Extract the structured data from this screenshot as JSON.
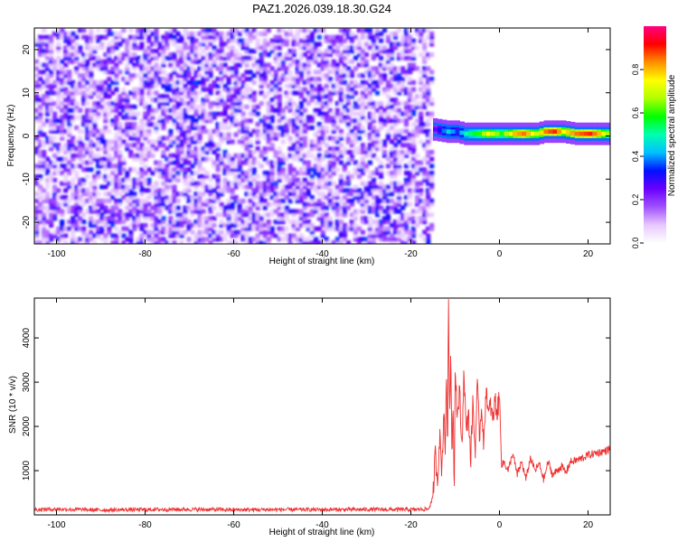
{
  "figure_title": "PAZ1.2026.039.18.30.G24",
  "chart_data": [
    {
      "type": "heatmap",
      "title": "PAZ1.2026.039.18.30.G24",
      "xlabel": "Height of straight line (km)",
      "ylabel": "Frequency (Hz)",
      "xlim": [
        -105,
        25
      ],
      "ylim": [
        -25,
        25
      ],
      "xticks": [
        -100,
        -80,
        -60,
        -40,
        -20,
        0,
        20
      ],
      "yticks": [
        -20,
        -10,
        0,
        10,
        20
      ],
      "colorbar": {
        "label": "Normalized spectral amplitude",
        "range": [
          0,
          1
        ],
        "ticks": [
          0.0,
          0.2,
          0.4,
          0.6,
          0.8
        ],
        "colormap": [
          "#ffffff",
          "#e8c8ff",
          "#a050ff",
          "#6a00ff",
          "#0010ff",
          "#00c0ff",
          "#00ffb0",
          "#00ff00",
          "#b0ff00",
          "#ffff00",
          "#ff9000",
          "#ff0000",
          "#ff0080"
        ]
      },
      "description_regions": {
        "noise_region_x": [
          -105,
          -15
        ],
        "noise_amplitude_range": [
          0.0,
          0.3
        ],
        "signal_start_x": -15,
        "signal_center_frequency_hz": 0.5,
        "signal_peak_amplitude": 0.9
      },
      "signal_trace": {
        "x": [
          -15,
          -12,
          -10,
          -8,
          -5,
          -3,
          0,
          3,
          5,
          8,
          10,
          12,
          14,
          17,
          20,
          22,
          25
        ],
        "freq": [
          1.5,
          1.0,
          1.0,
          0.5,
          0.5,
          0.5,
          0.5,
          0.5,
          0.5,
          0.5,
          1.0,
          1.0,
          1.0,
          0.5,
          0.5,
          0.5,
          0.5
        ],
        "amp": [
          0.25,
          0.45,
          0.35,
          0.5,
          0.6,
          0.75,
          0.6,
          0.8,
          0.85,
          0.7,
          0.85,
          0.9,
          0.75,
          0.85,
          0.9,
          0.8,
          0.6
        ]
      }
    },
    {
      "type": "line",
      "xlabel": "Height of straight line (km)",
      "ylabel": "SNR (10 * v/v)",
      "xlim": [
        -105,
        25
      ],
      "ylim": [
        0,
        4900
      ],
      "xticks": [
        -100,
        -80,
        -60,
        -40,
        -20,
        0,
        20
      ],
      "yticks": [
        1000,
        2000,
        3000,
        4000
      ],
      "series": [
        {
          "name": "SNR",
          "color": "#ee3030",
          "x": [
            -105,
            -100,
            -90,
            -80,
            -70,
            -60,
            -50,
            -40,
            -30,
            -20,
            -16,
            -15,
            -14.5,
            -14,
            -13.5,
            -13,
            -12.5,
            -12.2,
            -12,
            -11.7,
            -11.5,
            -11.2,
            -11,
            -10.7,
            -10.5,
            -10.2,
            -10,
            -9.5,
            -9,
            -8.5,
            -8,
            -7.5,
            -7,
            -6.5,
            -6,
            -5.5,
            -5,
            -4.5,
            -4,
            -3.5,
            -3,
            -2.5,
            -2,
            -1.5,
            -1,
            -0.5,
            0,
            0.5,
            1,
            2,
            3,
            4,
            5,
            6,
            7,
            8,
            9,
            10,
            11,
            12,
            13,
            14,
            15,
            16,
            18,
            20,
            22,
            24,
            25
          ],
          "y": [
            120,
            130,
            110,
            120,
            125,
            115,
            120,
            118,
            122,
            120,
            130,
            400,
            1400,
            800,
            1800,
            1000,
            2500,
            1200,
            3400,
            1500,
            4900,
            2000,
            3800,
            1200,
            2800,
            500,
            3500,
            2200,
            2800,
            1500,
            3300,
            1800,
            2400,
            1200,
            2600,
            1400,
            2900,
            1800,
            2500,
            1500,
            3000,
            2200,
            2500,
            2100,
            2600,
            2300,
            2700,
            1100,
            1200,
            1000,
            1400,
            900,
            1200,
            800,
            1300,
            1000,
            1150,
            800,
            1200,
            900,
            1000,
            1100,
            950,
            1200,
            1250,
            1350,
            1400,
            1450,
            1500
          ]
        }
      ]
    }
  ]
}
